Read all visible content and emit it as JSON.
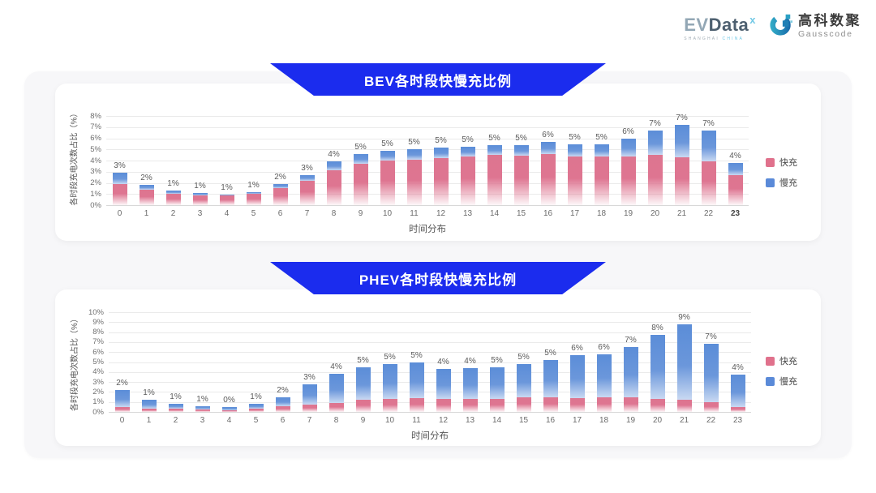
{
  "header": {
    "evdata_logo": {
      "ev": "EV",
      "data": "Data",
      "mark": "x",
      "subtext_left": "SHANGHAI",
      "subtext_right": "CHINA"
    },
    "gausscode_logo": {
      "cn": "高科数聚",
      "en": "Gausscode"
    }
  },
  "colors": {
    "banner_blue": "#1b2cee",
    "fast_pink": "#dd7590",
    "slow_blue": "#5b8dd8",
    "panel_bg": "#f7f7f9",
    "gridline": "#eaeaea"
  },
  "chart_data": [
    {
      "type": "bar",
      "stacked": true,
      "title": "BEV各时段快慢充比例",
      "xlabel": "时间分布",
      "ylabel": "各时段充电次数占比（%）",
      "ylim": [
        0,
        8
      ],
      "y_tick_step": 1,
      "y_tick_suffix": "%",
      "grid": true,
      "legend_position": "right",
      "bold_last_category": true,
      "categories": [
        "0",
        "1",
        "2",
        "3",
        "4",
        "5",
        "6",
        "7",
        "8",
        "9",
        "10",
        "11",
        "12",
        "13",
        "14",
        "15",
        "16",
        "17",
        "18",
        "19",
        "20",
        "21",
        "22",
        "23"
      ],
      "series": [
        {
          "name": "快充",
          "color": "#dd7590",
          "values": [
            1.9,
            1.4,
            1.0,
            0.9,
            0.85,
            1.0,
            1.55,
            2.2,
            3.1,
            3.7,
            4.0,
            4.1,
            4.25,
            4.35,
            4.5,
            4.45,
            4.55,
            4.35,
            4.35,
            4.4,
            4.5,
            4.3,
            3.95,
            2.7
          ]
        },
        {
          "name": "慢充",
          "color": "#5b8dd8",
          "values": [
            1.0,
            0.45,
            0.3,
            0.2,
            0.1,
            0.2,
            0.35,
            0.5,
            0.8,
            0.85,
            0.9,
            0.95,
            0.9,
            0.9,
            0.9,
            0.95,
            1.1,
            1.1,
            1.1,
            1.55,
            2.2,
            2.9,
            2.75,
            1.1
          ]
        }
      ],
      "bar_total_labels": [
        "3%",
        "2%",
        "1%",
        "1%",
        "1%",
        "1%",
        "2%",
        "3%",
        "4%",
        "5%",
        "5%",
        "5%",
        "5%",
        "5%",
        "5%",
        "5%",
        "6%",
        "5%",
        "5%",
        "6%",
        "7%",
        "7%",
        "7%",
        "4%"
      ]
    },
    {
      "type": "bar",
      "stacked": true,
      "title": "PHEV各时段快慢充比例",
      "xlabel": "时间分布",
      "ylabel": "各时段充电次数占比（%）",
      "ylim": [
        0,
        10
      ],
      "y_tick_step": 1,
      "y_tick_suffix": "%",
      "grid": true,
      "legend_position": "right",
      "bold_last_category": false,
      "categories": [
        "0",
        "1",
        "2",
        "3",
        "4",
        "5",
        "6",
        "7",
        "8",
        "9",
        "10",
        "11",
        "12",
        "13",
        "14",
        "15",
        "16",
        "17",
        "18",
        "19",
        "20",
        "21",
        "22",
        "23"
      ],
      "series": [
        {
          "name": "快充",
          "color": "#dd7590",
          "values": [
            0.45,
            0.35,
            0.3,
            0.25,
            0.15,
            0.3,
            0.55,
            0.75,
            0.9,
            1.2,
            1.3,
            1.4,
            1.3,
            1.3,
            1.3,
            1.5,
            1.5,
            1.4,
            1.5,
            1.5,
            1.3,
            1.2,
            1.0,
            0.5
          ]
        },
        {
          "name": "慢充",
          "color": "#5b8dd8",
          "values": [
            1.75,
            0.85,
            0.5,
            0.35,
            0.3,
            0.55,
            0.95,
            2.0,
            2.9,
            3.3,
            3.5,
            3.6,
            3.0,
            3.1,
            3.2,
            3.3,
            3.7,
            4.3,
            4.3,
            5.0,
            6.4,
            7.6,
            5.8,
            3.2
          ]
        }
      ],
      "bar_total_labels": [
        "2%",
        "1%",
        "1%",
        "1%",
        "0%",
        "1%",
        "2%",
        "3%",
        "4%",
        "5%",
        "5%",
        "5%",
        "4%",
        "4%",
        "5%",
        "5%",
        "5%",
        "6%",
        "6%",
        "7%",
        "8%",
        "9%",
        "7%",
        "4%"
      ]
    }
  ]
}
